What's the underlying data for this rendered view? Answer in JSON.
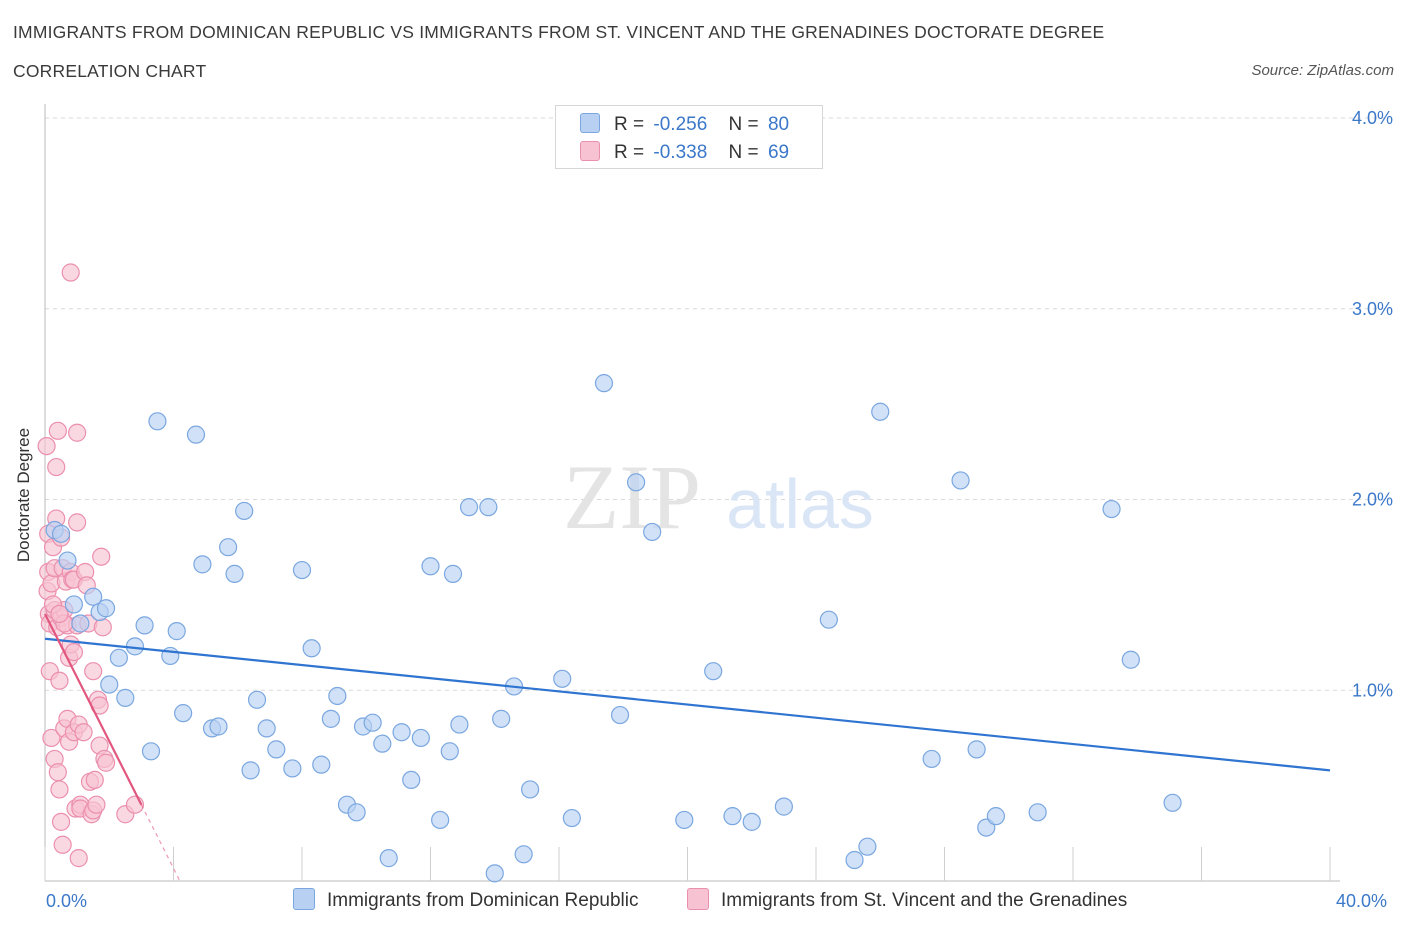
{
  "header": {
    "title_line1": "IMMIGRANTS FROM DOMINICAN REPUBLIC VS IMMIGRANTS FROM ST. VINCENT AND THE GRENADINES DOCTORATE DEGREE",
    "title_line2": "CORRELATION CHART",
    "source": "Source: ZipAtlas.com"
  },
  "watermark": {
    "zip": "ZIP",
    "atlas": "atlas"
  },
  "legend": {
    "rows": [
      {
        "r_label": "R =",
        "r_value": "-0.256",
        "n_label": "N =",
        "n_value": "80"
      },
      {
        "r_label": "R =",
        "r_value": "-0.338",
        "n_label": "N =",
        "n_value": "69"
      }
    ]
  },
  "colors": {
    "blue_fill": "#b8d1f3",
    "blue_stroke": "#7aa7e0",
    "blue_line": "#2f74d0",
    "pink_fill": "#f7c3d3",
    "pink_stroke": "#eb8fae",
    "pink_line": "#e2577f",
    "accent_text": "#3b78c9",
    "grid": "#d9d9d9"
  },
  "chart_data": {
    "type": "scatter",
    "title": "IMMIGRANTS FROM DOMINICAN REPUBLIC VS IMMIGRANTS FROM ST. VINCENT AND THE GRENADINES DOCTORATE DEGREE CORRELATION CHART",
    "xlabel": "",
    "ylabel": "Doctorate Degree",
    "xlim": [
      0,
      40
    ],
    "ylim": [
      0,
      4
    ],
    "x_tick_labels": [
      "0.0%",
      "40.0%"
    ],
    "y_tick_labels": [
      "1.0%",
      "2.0%",
      "3.0%",
      "4.0%"
    ],
    "y_ticks": [
      1,
      2,
      3,
      4
    ],
    "grid": true,
    "legend_position": "top-center",
    "series": [
      {
        "name": "Immigrants from Dominican Republic",
        "color": "#7aa7e0",
        "trend": {
          "x": [
            0,
            40
          ],
          "y": [
            1.27,
            0.58
          ]
        },
        "points": [
          [
            0.3,
            1.84
          ],
          [
            0.5,
            1.82
          ],
          [
            0.7,
            1.68
          ],
          [
            0.9,
            1.45
          ],
          [
            1.1,
            1.35
          ],
          [
            1.5,
            1.49
          ],
          [
            1.7,
            1.41
          ],
          [
            1.9,
            1.43
          ],
          [
            2.0,
            1.03
          ],
          [
            2.3,
            1.17
          ],
          [
            2.5,
            0.96
          ],
          [
            2.8,
            1.23
          ],
          [
            3.1,
            1.34
          ],
          [
            3.3,
            0.68
          ],
          [
            3.5,
            2.41
          ],
          [
            3.9,
            1.18
          ],
          [
            4.1,
            1.31
          ],
          [
            4.3,
            0.88
          ],
          [
            4.7,
            2.34
          ],
          [
            4.9,
            1.66
          ],
          [
            5.2,
            0.8
          ],
          [
            5.4,
            0.81
          ],
          [
            5.7,
            1.75
          ],
          [
            5.9,
            1.61
          ],
          [
            6.2,
            1.94
          ],
          [
            6.4,
            0.58
          ],
          [
            6.6,
            0.95
          ],
          [
            6.9,
            0.8
          ],
          [
            7.2,
            0.69
          ],
          [
            7.7,
            0.59
          ],
          [
            8.0,
            1.63
          ],
          [
            8.3,
            1.22
          ],
          [
            8.6,
            0.61
          ],
          [
            8.9,
            0.85
          ],
          [
            9.1,
            0.97
          ],
          [
            9.4,
            0.4
          ],
          [
            9.7,
            0.36
          ],
          [
            9.9,
            0.81
          ],
          [
            10.2,
            0.83
          ],
          [
            10.5,
            0.72
          ],
          [
            10.7,
            0.12
          ],
          [
            11.1,
            0.78
          ],
          [
            11.4,
            0.53
          ],
          [
            11.7,
            0.75
          ],
          [
            12.0,
            1.65
          ],
          [
            12.3,
            0.32
          ],
          [
            12.6,
            0.68
          ],
          [
            12.7,
            1.61
          ],
          [
            12.9,
            0.82
          ],
          [
            13.2,
            1.96
          ],
          [
            13.8,
            1.96
          ],
          [
            14.0,
            0.04
          ],
          [
            14.2,
            0.85
          ],
          [
            14.6,
            1.02
          ],
          [
            14.9,
            0.14
          ],
          [
            15.1,
            0.48
          ],
          [
            16.1,
            1.06
          ],
          [
            16.4,
            0.33
          ],
          [
            17.4,
            2.61
          ],
          [
            17.9,
            0.87
          ],
          [
            18.4,
            2.09
          ],
          [
            18.9,
            1.83
          ],
          [
            19.9,
            0.32
          ],
          [
            20.8,
            1.1
          ],
          [
            21.4,
            0.34
          ],
          [
            22.0,
            0.31
          ],
          [
            23.0,
            0.39
          ],
          [
            24.4,
            1.37
          ],
          [
            25.2,
            0.11
          ],
          [
            25.6,
            0.18
          ],
          [
            26.0,
            2.46
          ],
          [
            27.6,
            0.64
          ],
          [
            28.5,
            2.1
          ],
          [
            29.0,
            0.69
          ],
          [
            29.3,
            0.28
          ],
          [
            29.6,
            0.34
          ],
          [
            30.9,
            0.36
          ],
          [
            33.2,
            1.95
          ],
          [
            33.8,
            1.16
          ],
          [
            35.1,
            0.41
          ]
        ]
      },
      {
        "name": "Immigrants from St. Vincent and the Grenadines",
        "color": "#eb8fae",
        "trend": {
          "x": [
            0,
            3.0
          ],
          "y": [
            1.4,
            0.4
          ]
        },
        "trend_dashed": {
          "x": [
            3.0,
            4.2
          ],
          "y": [
            0.4,
            0.0
          ]
        },
        "points": [
          [
            0.05,
            2.28
          ],
          [
            0.08,
            1.52
          ],
          [
            0.1,
            1.82
          ],
          [
            0.1,
            1.62
          ],
          [
            0.12,
            1.4
          ],
          [
            0.15,
            1.35
          ],
          [
            0.15,
            1.1
          ],
          [
            0.2,
            1.56
          ],
          [
            0.2,
            0.75
          ],
          [
            0.25,
            1.75
          ],
          [
            0.3,
            1.64
          ],
          [
            0.3,
            1.42
          ],
          [
            0.3,
            0.64
          ],
          [
            0.35,
            2.17
          ],
          [
            0.35,
            1.9
          ],
          [
            0.38,
            1.33
          ],
          [
            0.4,
            2.36
          ],
          [
            0.4,
            0.57
          ],
          [
            0.45,
            1.05
          ],
          [
            0.45,
            0.48
          ],
          [
            0.5,
            1.8
          ],
          [
            0.5,
            1.38
          ],
          [
            0.5,
            0.31
          ],
          [
            0.55,
            1.64
          ],
          [
            0.55,
            0.19
          ],
          [
            0.6,
            1.42
          ],
          [
            0.6,
            0.8
          ],
          [
            0.65,
            1.57
          ],
          [
            0.7,
            1.34
          ],
          [
            0.7,
            0.85
          ],
          [
            0.75,
            1.17
          ],
          [
            0.75,
            0.73
          ],
          [
            0.8,
            3.19
          ],
          [
            0.8,
            1.62
          ],
          [
            0.8,
            1.24
          ],
          [
            0.85,
            1.58
          ],
          [
            0.9,
            1.58
          ],
          [
            0.9,
            1.2
          ],
          [
            0.9,
            0.78
          ],
          [
            0.95,
            0.38
          ],
          [
            1.0,
            2.35
          ],
          [
            1.0,
            1.88
          ],
          [
            1.0,
            1.34
          ],
          [
            1.05,
            0.82
          ],
          [
            1.05,
            0.12
          ],
          [
            1.1,
            0.4
          ],
          [
            1.1,
            0.38
          ],
          [
            1.2,
            0.78
          ],
          [
            1.25,
            1.62
          ],
          [
            1.3,
            1.55
          ],
          [
            1.35,
            1.35
          ],
          [
            1.4,
            0.52
          ],
          [
            1.45,
            0.35
          ],
          [
            1.5,
            1.1
          ],
          [
            1.5,
            0.37
          ],
          [
            1.55,
            0.53
          ],
          [
            1.6,
            0.4
          ],
          [
            1.65,
            0.95
          ],
          [
            1.7,
            0.92
          ],
          [
            1.7,
            0.71
          ],
          [
            1.75,
            1.7
          ],
          [
            1.8,
            1.33
          ],
          [
            1.85,
            0.64
          ],
          [
            1.9,
            0.62
          ],
          [
            2.5,
            0.35
          ],
          [
            2.8,
            0.4
          ],
          [
            0.25,
            1.45
          ],
          [
            0.6,
            1.35
          ],
          [
            0.45,
            1.4
          ]
        ]
      }
    ]
  },
  "bottom_legend": {
    "blue_label": "Immigrants from Dominican Republic",
    "pink_label": "Immigrants from St. Vincent and the Grenadines"
  }
}
